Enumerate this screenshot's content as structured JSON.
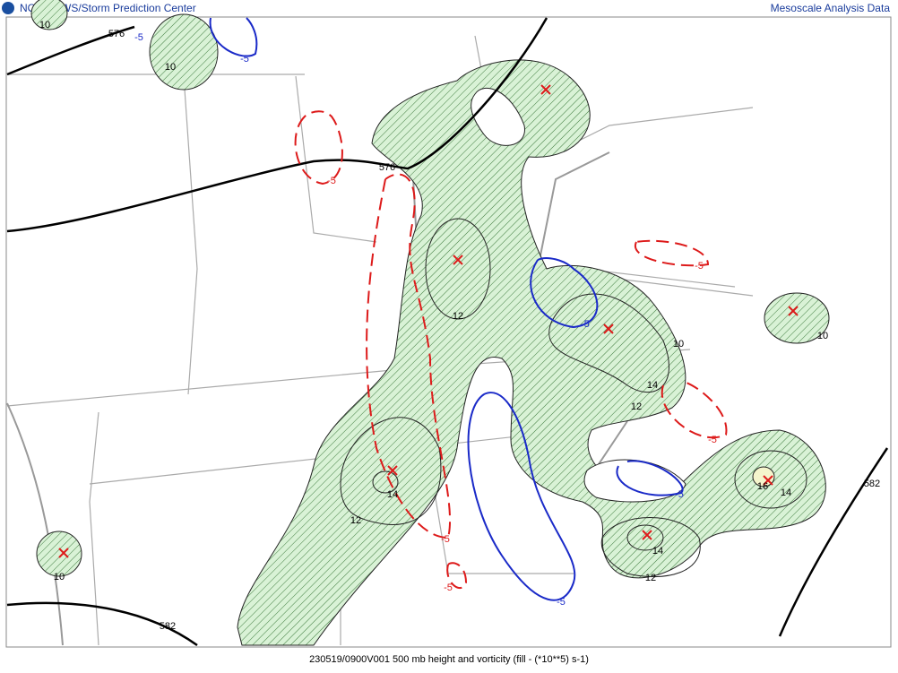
{
  "header": {
    "left": "NOAA/NWS/Storm Prediction Center",
    "right": "Mesoscale Analysis Data"
  },
  "map": {
    "contour_labels": [
      "10",
      "576",
      "-5",
      "10",
      "-5",
      "-5",
      "576",
      "12",
      "-5",
      "10",
      "14",
      "12",
      "-5",
      "10",
      "-5",
      "14",
      "12",
      "-5",
      "-5",
      "16",
      "14",
      "-5",
      "14",
      "12",
      "582",
      "10",
      "582",
      "-5"
    ]
  },
  "footer": {
    "caption": "230519/0900V001 500 mb height and vorticity (fill -  (*10**5) s-1)"
  }
}
